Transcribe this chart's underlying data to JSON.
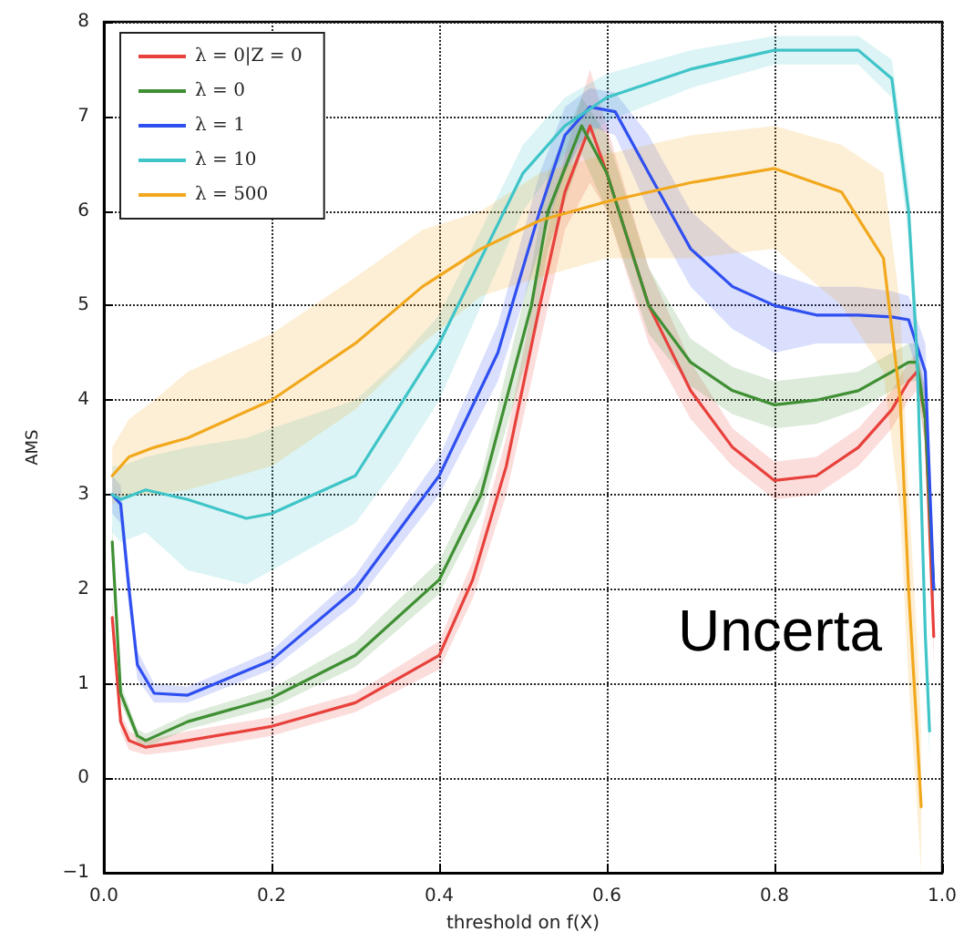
{
  "chart_data": {
    "type": "line",
    "xlabel": "threshold on f(X)",
    "ylabel": "AMS",
    "xlim": [
      0,
      1
    ],
    "ylim": [
      -1,
      8
    ],
    "xticks": [
      {
        "value": 0,
        "label": "0.0"
      },
      0.2,
      0.4,
      0.6,
      0.8,
      {
        "value": 1,
        "label": "1.0"
      }
    ],
    "yticks": [
      {
        "value": -1,
        "label": "−1"
      },
      0,
      1,
      2,
      3,
      4,
      5,
      6,
      7,
      8
    ],
    "grid": true,
    "legend": "top left",
    "marker": "none",
    "line_style": "solid",
    "annotations": [
      "Uncerta"
    ],
    "series": [
      {
        "name": "λ = 0|Z = 0",
        "color": "#e8413c",
        "x": [
          0.01,
          0.02,
          0.03,
          0.05,
          0.1,
          0.2,
          0.3,
          0.4,
          0.44,
          0.48,
          0.52,
          0.55,
          0.58,
          0.6,
          0.65,
          0.7,
          0.75,
          0.8,
          0.85,
          0.9,
          0.94,
          0.96,
          0.97,
          0.98,
          0.99
        ],
        "values": [
          1.7,
          0.6,
          0.4,
          0.33,
          0.4,
          0.55,
          0.8,
          1.3,
          2.1,
          3.3,
          5.0,
          6.2,
          6.9,
          6.4,
          5.0,
          4.1,
          3.5,
          3.15,
          3.2,
          3.5,
          3.9,
          4.2,
          4.3,
          3.8,
          1.5
        ],
        "lower": [
          1.5,
          0.5,
          0.3,
          0.25,
          0.3,
          0.45,
          0.7,
          1.15,
          1.9,
          3.0,
          4.6,
          5.8,
          6.3,
          6.0,
          4.6,
          3.8,
          3.3,
          2.95,
          3.0,
          3.3,
          3.7,
          4.0,
          4.1,
          3.5,
          1.2
        ],
        "upper": [
          1.9,
          0.7,
          0.5,
          0.4,
          0.5,
          0.65,
          0.9,
          1.45,
          2.3,
          3.6,
          5.4,
          6.6,
          7.5,
          6.9,
          5.4,
          4.4,
          3.7,
          3.35,
          3.4,
          3.7,
          4.1,
          4.4,
          4.5,
          4.1,
          1.8
        ]
      },
      {
        "name": "λ = 0",
        "color": "#3f8f33",
        "x": [
          0.01,
          0.02,
          0.04,
          0.05,
          0.1,
          0.2,
          0.3,
          0.4,
          0.45,
          0.48,
          0.51,
          0.53,
          0.57,
          0.6,
          0.65,
          0.7,
          0.75,
          0.8,
          0.85,
          0.9,
          0.94,
          0.96,
          0.97,
          0.98,
          0.99
        ],
        "values": [
          2.5,
          0.9,
          0.45,
          0.4,
          0.6,
          0.85,
          1.3,
          2.1,
          3.0,
          4.0,
          5.0,
          6.0,
          6.9,
          6.4,
          5.0,
          4.4,
          4.1,
          3.95,
          4.0,
          4.1,
          4.3,
          4.4,
          4.4,
          3.8,
          2.0
        ],
        "lower": [
          2.3,
          0.8,
          0.38,
          0.33,
          0.52,
          0.75,
          1.18,
          1.95,
          2.8,
          3.7,
          4.6,
          5.6,
          6.6,
          6.0,
          4.7,
          4.15,
          3.85,
          3.7,
          3.75,
          3.9,
          4.1,
          4.2,
          4.2,
          3.5,
          1.7
        ],
        "upper": [
          2.7,
          1.0,
          0.52,
          0.47,
          0.68,
          0.95,
          1.45,
          2.3,
          3.2,
          4.3,
          5.4,
          6.4,
          7.2,
          6.8,
          5.4,
          4.65,
          4.35,
          4.2,
          4.25,
          4.3,
          4.5,
          4.6,
          4.6,
          4.1,
          2.3
        ]
      },
      {
        "name": "λ = 1",
        "color": "#2f4ff0",
        "x": [
          0.01,
          0.02,
          0.03,
          0.04,
          0.06,
          0.1,
          0.2,
          0.3,
          0.4,
          0.47,
          0.52,
          0.55,
          0.58,
          0.61,
          0.65,
          0.7,
          0.75,
          0.8,
          0.85,
          0.9,
          0.94,
          0.96,
          0.98,
          0.99
        ],
        "values": [
          3.0,
          2.9,
          2.0,
          1.2,
          0.9,
          0.88,
          1.25,
          2.0,
          3.2,
          4.5,
          6.0,
          6.8,
          7.1,
          7.05,
          6.4,
          5.6,
          5.2,
          5.0,
          4.9,
          4.9,
          4.88,
          4.85,
          4.3,
          2.0
        ],
        "lower": [
          2.8,
          2.7,
          1.8,
          1.05,
          0.8,
          0.8,
          1.15,
          1.85,
          3.0,
          4.2,
          5.6,
          6.4,
          6.9,
          6.8,
          6.0,
          5.2,
          4.75,
          4.5,
          4.6,
          4.6,
          4.6,
          4.6,
          4.0,
          1.7
        ],
        "upper": [
          3.2,
          3.1,
          2.2,
          1.35,
          1.0,
          0.97,
          1.35,
          2.15,
          3.4,
          4.8,
          6.4,
          7.1,
          7.3,
          7.25,
          6.8,
          6.0,
          5.6,
          5.35,
          5.2,
          5.2,
          5.15,
          5.1,
          4.6,
          2.3
        ]
      },
      {
        "name": "λ = 10",
        "color": "#3fc4c8",
        "x": [
          0.01,
          0.02,
          0.05,
          0.1,
          0.17,
          0.2,
          0.3,
          0.35,
          0.4,
          0.45,
          0.5,
          0.55,
          0.6,
          0.7,
          0.8,
          0.9,
          0.94,
          0.96,
          0.97,
          0.98,
          0.985
        ],
        "values": [
          3.0,
          2.95,
          3.05,
          2.95,
          2.75,
          2.8,
          3.2,
          3.9,
          4.6,
          5.5,
          6.4,
          6.9,
          7.2,
          7.5,
          7.7,
          7.7,
          7.4,
          6.0,
          4.5,
          1.5,
          0.5
        ],
        "lower": [
          2.6,
          2.5,
          2.6,
          2.2,
          2.05,
          2.2,
          2.7,
          3.3,
          4.0,
          5.0,
          6.0,
          6.6,
          6.95,
          7.3,
          7.55,
          7.55,
          7.2,
          5.7,
          4.1,
          1.2,
          0.2
        ],
        "upper": [
          3.3,
          3.3,
          3.4,
          3.5,
          3.6,
          3.7,
          4.0,
          4.4,
          4.9,
          5.8,
          6.7,
          7.2,
          7.45,
          7.7,
          7.85,
          7.85,
          7.6,
          6.3,
          4.9,
          1.8,
          0.8
        ]
      },
      {
        "name": "λ = 500",
        "color": "#f2a81d",
        "x": [
          0.01,
          0.03,
          0.06,
          0.1,
          0.2,
          0.3,
          0.38,
          0.45,
          0.52,
          0.6,
          0.7,
          0.8,
          0.88,
          0.93,
          0.95,
          0.96,
          0.97,
          0.975
        ],
        "values": [
          3.2,
          3.4,
          3.5,
          3.6,
          4.0,
          4.6,
          5.2,
          5.6,
          5.9,
          6.1,
          6.3,
          6.45,
          6.2,
          5.5,
          4.0,
          2.0,
          0.5,
          -0.3
        ],
        "lower": [
          2.9,
          3.0,
          3.0,
          3.05,
          3.3,
          3.9,
          4.6,
          5.1,
          5.3,
          5.5,
          5.5,
          5.6,
          5.0,
          4.3,
          2.8,
          1.0,
          -0.3,
          -1.0
        ],
        "upper": [
          3.5,
          3.8,
          4.0,
          4.3,
          4.7,
          5.3,
          5.8,
          6.0,
          6.4,
          6.6,
          6.8,
          6.9,
          6.7,
          6.4,
          5.0,
          3.0,
          1.5,
          0.5
        ]
      }
    ]
  }
}
